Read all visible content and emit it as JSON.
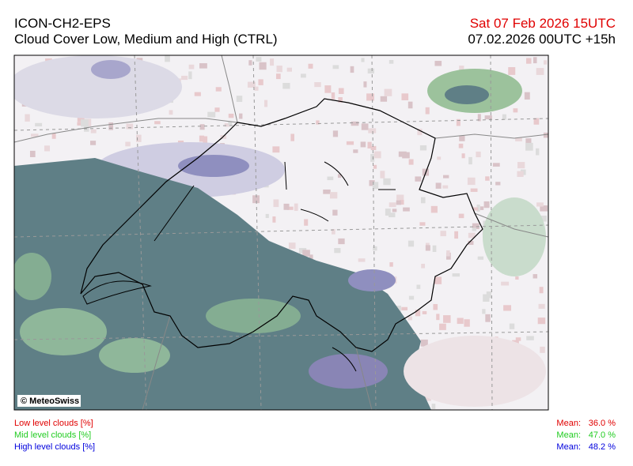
{
  "header": {
    "model": "ICON-CH2-EPS",
    "title": "Cloud Cover Low, Medium and High (CTRL)",
    "valid_time": "Sat 07 Feb 2026 15UTC",
    "run_time": "07.02.2026 00UTC +15h"
  },
  "map": {
    "copyright": "© MeteoSwiss"
  },
  "legend": [
    {
      "label": "Low level clouds [%]",
      "mean_label": "Mean:",
      "mean": "36.0 %"
    },
    {
      "label": "Mid level clouds [%]",
      "mean_label": "Mean:",
      "mean": "47.0 %"
    },
    {
      "label": "High level clouds [%]",
      "mean_label": "Mean:",
      "mean": "48.2 %"
    }
  ]
}
